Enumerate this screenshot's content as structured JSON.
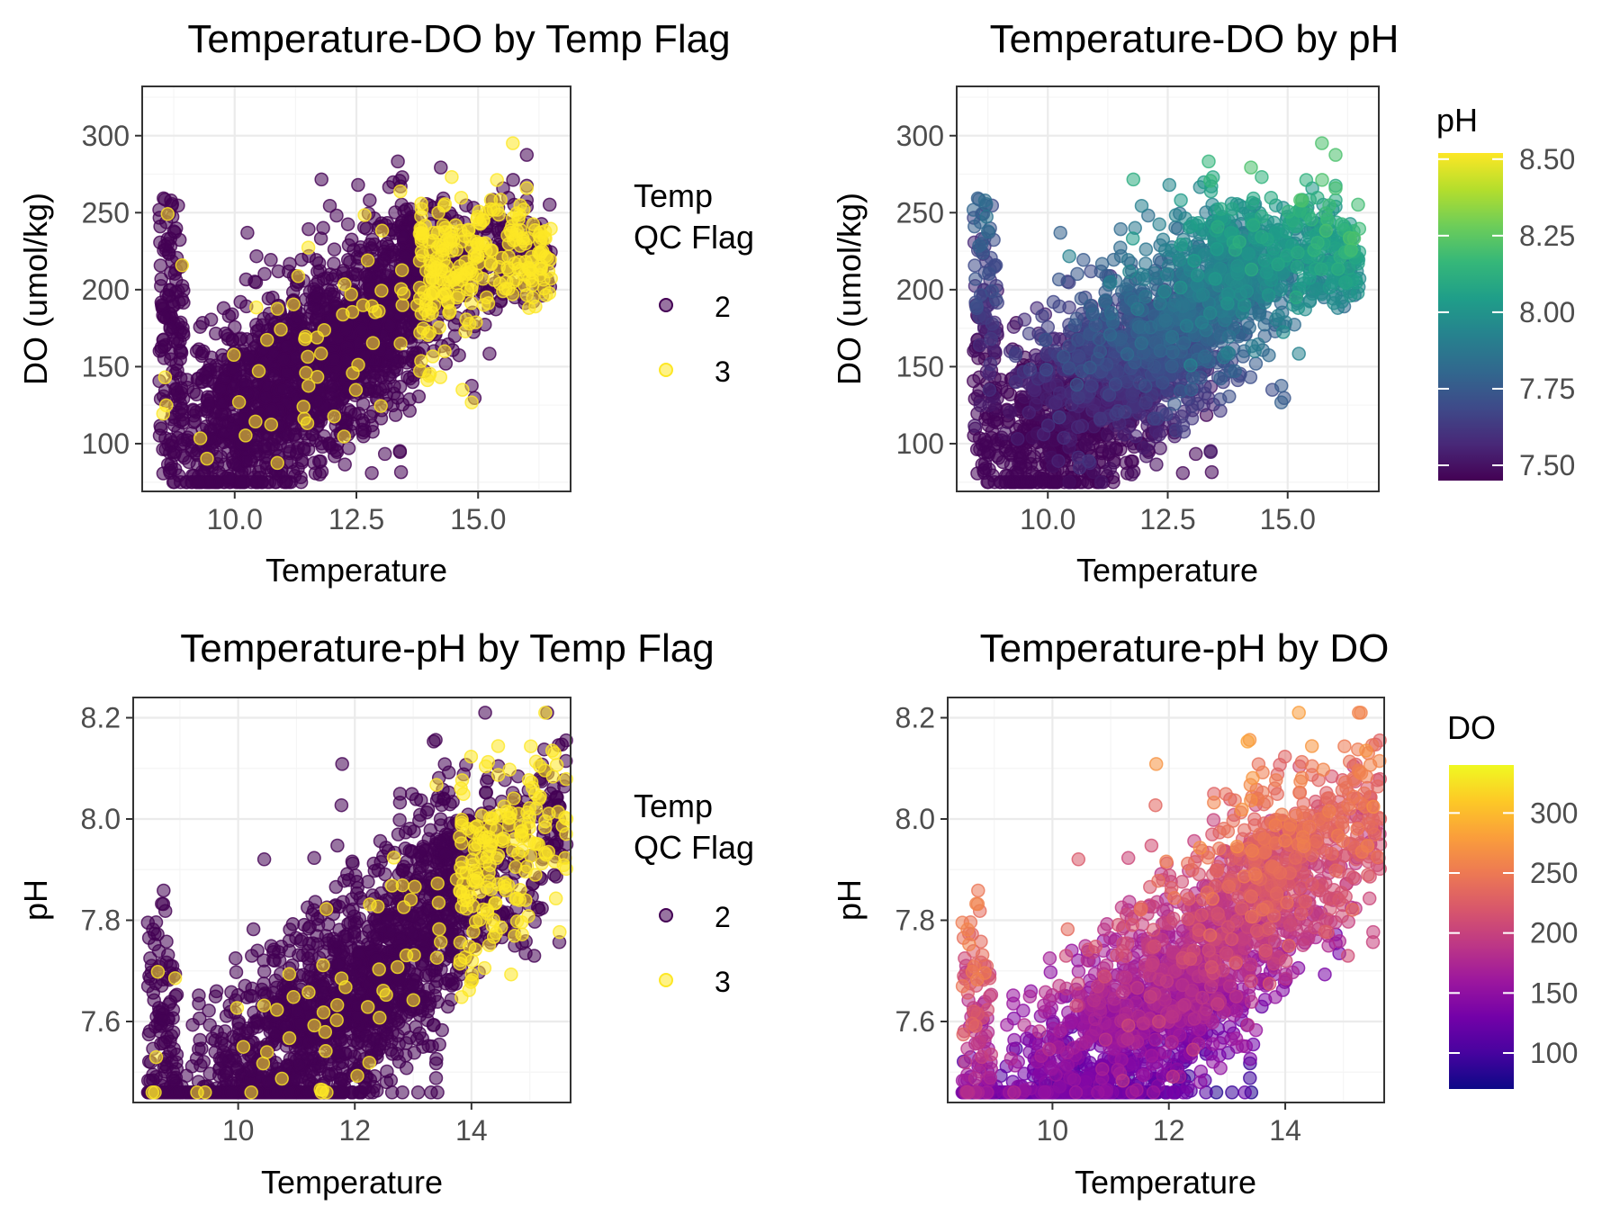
{
  "colors": {
    "flag_2": "#440154",
    "flag_3": "#FDE725",
    "viridis": [
      "#440154",
      "#482878",
      "#3E4A89",
      "#31688E",
      "#26828E",
      "#1F9E89",
      "#35B779",
      "#6DCD59",
      "#B4DE2C",
      "#FDE725"
    ],
    "plasma": [
      "#0D0887",
      "#47039F",
      "#7301A8",
      "#9C179E",
      "#BD3786",
      "#D8576B",
      "#ED7953",
      "#FA9E3B",
      "#FDC926",
      "#F0F921"
    ],
    "grid_major": "#EBEBEB",
    "grid_minor": "#F5F5F5",
    "tick_text": "#4D4D4D"
  },
  "chart_data": [
    {
      "type": "scatter",
      "title": "Temperature-DO by Temp Flag",
      "xlabel": "Temperature",
      "ylabel": "DO (umol/kg)",
      "x_ticks": [
        "10.0",
        "12.5",
        "15.0"
      ],
      "y_ticks": [
        "100",
        "150",
        "200",
        "250",
        "300"
      ],
      "xlim": [
        8.1,
        16.9
      ],
      "ylim": [
        69,
        332
      ],
      "grid": true,
      "color_by": "Temp QC Flag",
      "legend": {
        "title_lines": [
          "Temp",
          "QC Flag"
        ],
        "entries": [
          "2",
          "3"
        ],
        "placement": "right"
      },
      "series": [
        {
          "name": "2",
          "color_key": "flag_2"
        },
        {
          "name": "3",
          "color_key": "flag_3"
        }
      ],
      "data_range": {
        "x": [
          8.4,
          16.6
        ],
        "y": [
          75,
          318
        ]
      }
    },
    {
      "type": "scatter",
      "title": "Temperature-DO by pH",
      "xlabel": "Temperature",
      "ylabel": "DO (umol/kg)",
      "x_ticks": [
        "10.0",
        "12.5",
        "15.0"
      ],
      "y_ticks": [
        "100",
        "150",
        "200",
        "250",
        "300"
      ],
      "xlim": [
        8.1,
        16.9
      ],
      "ylim": [
        69,
        332
      ],
      "grid": true,
      "color_by": "pH",
      "colorbar": {
        "title": "pH",
        "palette": "viridis",
        "range": [
          7.45,
          8.52
        ],
        "ticks": [
          "7.50",
          "7.75",
          "8.00",
          "8.25",
          "8.50"
        ],
        "placement": "right"
      },
      "data_range": {
        "x": [
          8.4,
          16.6
        ],
        "y": [
          75,
          318
        ]
      }
    },
    {
      "type": "scatter",
      "title": "Temperature-pH by Temp Flag",
      "xlabel": "Temperature",
      "ylabel": "pH",
      "x_ticks": [
        "10",
        "12",
        "14"
      ],
      "y_ticks": [
        "7.6",
        "7.8",
        "8.0",
        "8.2"
      ],
      "xlim": [
        8.2,
        15.7
      ],
      "ylim": [
        7.44,
        8.24
      ],
      "grid": true,
      "color_by": "Temp QC Flag",
      "legend": {
        "title_lines": [
          "Temp",
          "QC Flag"
        ],
        "entries": [
          "2",
          "3"
        ],
        "placement": "right"
      },
      "series": [
        {
          "name": "2",
          "color_key": "flag_2"
        },
        {
          "name": "3",
          "color_key": "flag_3"
        }
      ],
      "data_range": {
        "x": [
          8.5,
          15.3
        ],
        "y": [
          7.45,
          8.22
        ]
      }
    },
    {
      "type": "scatter",
      "title": "Temperature-pH by DO",
      "xlabel": "Temperature",
      "ylabel": "pH",
      "x_ticks": [
        "10",
        "12",
        "14"
      ],
      "y_ticks": [
        "7.6",
        "7.8",
        "8.0",
        "8.2"
      ],
      "xlim": [
        8.2,
        15.7
      ],
      "ylim": [
        7.44,
        8.24
      ],
      "grid": true,
      "color_by": "DO",
      "colorbar": {
        "title": "DO",
        "palette": "plasma",
        "range": [
          70,
          340
        ],
        "ticks": [
          "100",
          "150",
          "200",
          "250",
          "300"
        ],
        "placement": "right"
      },
      "data_range": {
        "x": [
          8.5,
          15.3
        ],
        "y": [
          7.45,
          8.22
        ]
      }
    }
  ]
}
